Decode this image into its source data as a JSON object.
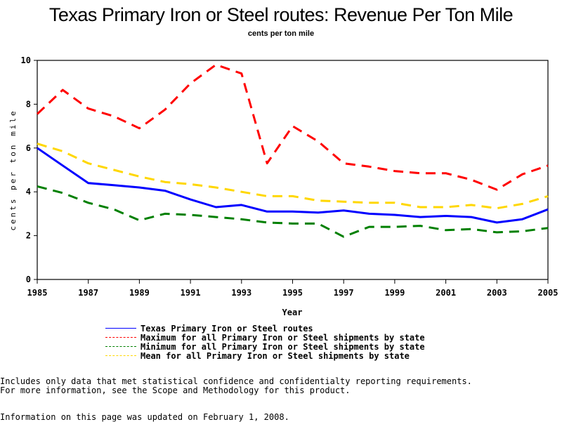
{
  "chart_data": {
    "type": "line",
    "title": "Texas Primary Iron or Steel routes: Revenue Per Ton Mile",
    "subtitle": "cents per ton mile",
    "xlabel": "Year",
    "ylabel": "cents per ton mile",
    "xlim": [
      1985,
      2005
    ],
    "ylim": [
      0,
      10
    ],
    "x_ticks": [
      "1985",
      "1987",
      "1989",
      "1991",
      "1993",
      "1995",
      "1997",
      "1999",
      "2001",
      "2003",
      "2005"
    ],
    "y_ticks": [
      "0",
      "2",
      "4",
      "6",
      "8",
      "10"
    ],
    "grid": false,
    "legend_position": "bottom",
    "x": [
      1985,
      1986,
      1987,
      1988,
      1989,
      1990,
      1991,
      1992,
      1993,
      1994,
      1995,
      1996,
      1997,
      1998,
      1999,
      2000,
      2001,
      2002,
      2003,
      2004,
      2005
    ],
    "series": [
      {
        "name": "Texas Primary Iron or Steel routes",
        "color": "#0000ff",
        "style": "solid",
        "values": [
          6.0,
          5.2,
          4.4,
          4.3,
          4.2,
          4.05,
          3.65,
          3.3,
          3.4,
          3.1,
          3.1,
          3.05,
          3.15,
          3.0,
          2.95,
          2.85,
          2.9,
          2.85,
          2.6,
          2.75,
          3.2
        ]
      },
      {
        "name": "Maximum for all Primary Iron or Steel shipments by state",
        "color": "#ff0000",
        "style": "dashed",
        "values": [
          7.55,
          8.65,
          7.8,
          7.45,
          6.9,
          7.75,
          8.95,
          9.8,
          9.4,
          5.3,
          7.0,
          6.3,
          5.3,
          5.15,
          4.95,
          4.85,
          4.85,
          4.55,
          4.1,
          4.8,
          5.2
        ]
      },
      {
        "name": "Minimum for all Primary Iron or Steel shipments by state",
        "color": "#008000",
        "style": "dashed",
        "values": [
          4.25,
          3.95,
          3.5,
          3.2,
          2.7,
          3.0,
          2.95,
          2.85,
          2.75,
          2.6,
          2.55,
          2.55,
          1.95,
          2.4,
          2.4,
          2.45,
          2.25,
          2.3,
          2.15,
          2.2,
          2.35
        ]
      },
      {
        "name": "Mean for all Primary Iron or Steel shipments by state",
        "color": "#ffd700",
        "style": "dashed",
        "values": [
          6.2,
          5.85,
          5.3,
          5.0,
          4.7,
          4.45,
          4.35,
          4.2,
          4.0,
          3.8,
          3.8,
          3.6,
          3.55,
          3.5,
          3.5,
          3.3,
          3.3,
          3.4,
          3.25,
          3.45,
          3.8
        ]
      }
    ]
  },
  "notes": {
    "line1": "Includes only data that met statistical confidence and confidentialty reporting requirements.",
    "line2": "For more information, see the Scope and Methodology for this product.",
    "updated": "Information on this page was updated on February 1, 2008."
  }
}
